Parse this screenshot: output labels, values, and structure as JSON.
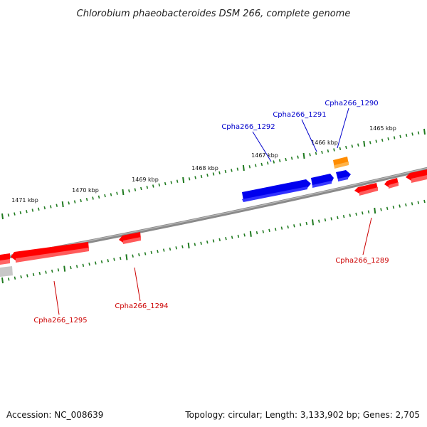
{
  "title": "Chlorobium phaeobacteroides DSM 266, complete genome",
  "footer": {
    "accession": "Accession: NC_008639",
    "summary": "Topology: circular; Length: 3,133,902 bp; Genes: 2,705"
  },
  "colors": {
    "backbone": "#8a8a8a",
    "ticks": "#1f7a1f",
    "reverse_gene": "#ff0000",
    "forward_gene": "#0000ee",
    "rna_gene": "#ff8c00",
    "other_gene": "#c8c8c8",
    "forward_label": "#0000cc",
    "reverse_label": "#cc0000"
  },
  "tick_labels": [
    "1471 kbp",
    "1470 kbp",
    "1469 kbp",
    "1468 kbp",
    "1467 kbp",
    "1466 kbp",
    "1465 kbp"
  ],
  "gene_labels": [
    {
      "id": "Cpha266_1290",
      "strand": "forward"
    },
    {
      "id": "Cpha266_1291",
      "strand": "forward"
    },
    {
      "id": "Cpha266_1292",
      "strand": "forward"
    },
    {
      "id": "Cpha266_1289",
      "strand": "reverse"
    },
    {
      "id": "Cpha266_1294",
      "strand": "reverse"
    },
    {
      "id": "Cpha266_1295",
      "strand": "reverse"
    }
  ]
}
